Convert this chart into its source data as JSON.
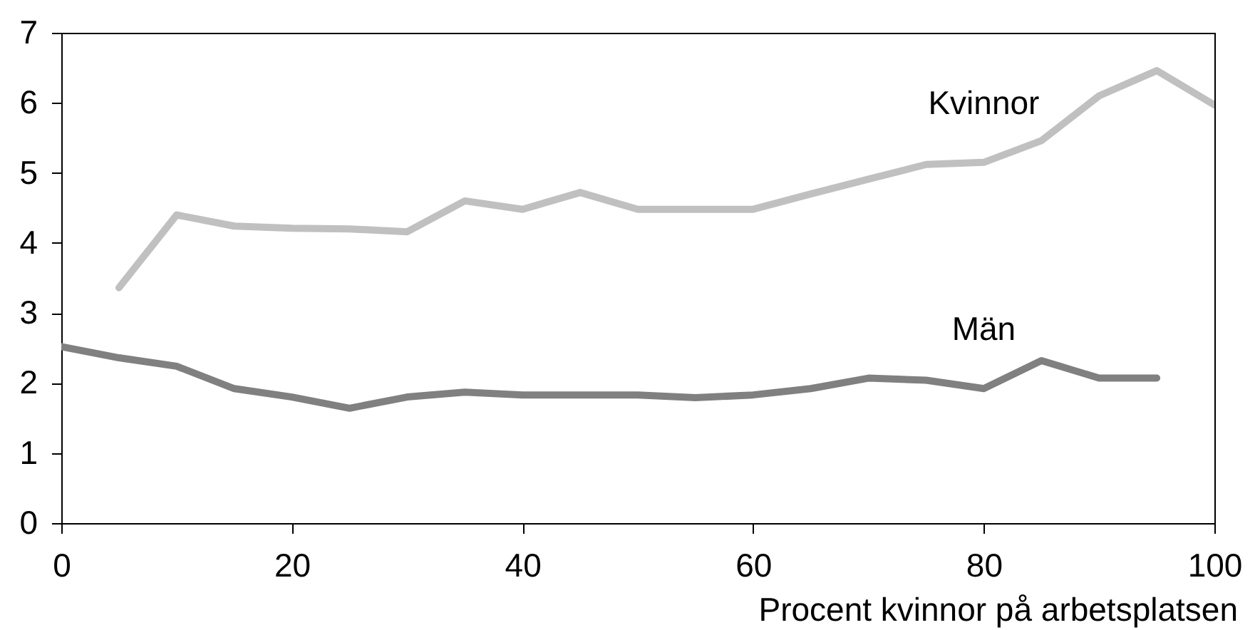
{
  "chart_data": {
    "type": "line",
    "xlabel": "Procent kvinnor på arbetsplatsen",
    "x": [
      0,
      5,
      10,
      15,
      20,
      25,
      30,
      35,
      40,
      45,
      50,
      55,
      60,
      65,
      70,
      75,
      80,
      85,
      90,
      95,
      100
    ],
    "xlim": [
      0,
      100
    ],
    "xticks": [
      0,
      20,
      40,
      60,
      80,
      100
    ],
    "ylim": [
      0,
      7
    ],
    "yticks": [
      0,
      1,
      2,
      3,
      4,
      5,
      6,
      7
    ],
    "grid": false,
    "series": [
      {
        "name": "Kvinnor",
        "color": "#c0c0c0",
        "values": [
          null,
          3.36,
          4.4,
          4.24,
          4.21,
          4.2,
          4.16,
          4.6,
          4.48,
          4.72,
          4.48,
          4.48,
          4.48,
          4.7,
          4.91,
          5.12,
          5.15,
          5.46,
          6.1,
          6.46,
          5.97
        ]
      },
      {
        "name": "Män",
        "color": "#808080",
        "values": [
          2.52,
          2.36,
          2.24,
          1.92,
          1.8,
          1.64,
          1.8,
          1.87,
          1.83,
          1.83,
          1.83,
          1.79,
          1.83,
          1.92,
          2.07,
          2.04,
          1.92,
          2.32,
          2.07,
          2.07,
          null
        ]
      }
    ]
  }
}
